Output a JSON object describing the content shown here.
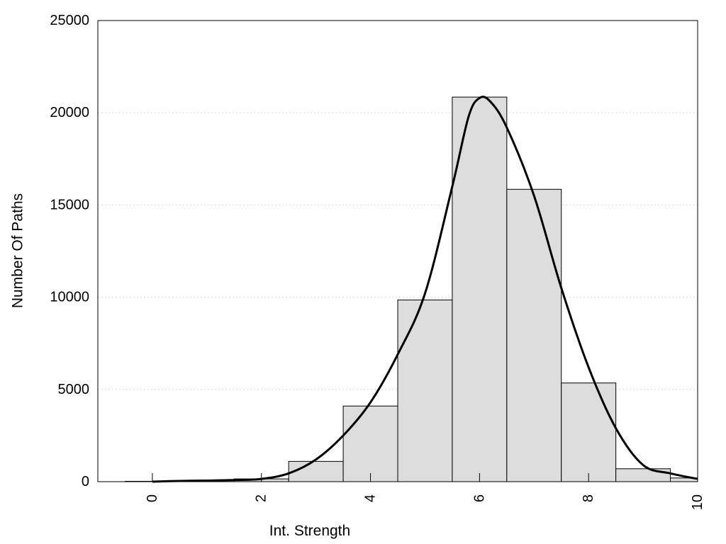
{
  "chart_data": {
    "type": "bar",
    "title": "",
    "xlabel": "Int. Strength",
    "ylabel": "Number Of Paths",
    "xlim": [
      -1,
      10
    ],
    "ylim": [
      0,
      25000
    ],
    "x_ticks": [
      0,
      2,
      4,
      6,
      8,
      10
    ],
    "x_tick_labels": [
      "0",
      "2",
      "4",
      "6",
      "8",
      "10"
    ],
    "y_ticks": [
      0,
      5000,
      10000,
      15000,
      20000,
      25000
    ],
    "y_tick_labels": [
      "0",
      "5000",
      "10000",
      "15000",
      "20000",
      "25000"
    ],
    "grid": "horizontal-dotted",
    "bars": {
      "bin_width": 1,
      "centers": [
        0,
        1,
        2,
        3,
        4,
        5,
        6,
        7,
        8,
        9,
        10
      ],
      "values": [
        20,
        60,
        150,
        1100,
        4100,
        9850,
        20850,
        15850,
        5350,
        700,
        200
      ]
    },
    "density_curve": {
      "x": [
        0,
        0.5,
        1,
        1.5,
        2,
        2.5,
        3,
        3.5,
        4,
        4.5,
        5,
        5.5,
        5.8,
        6,
        6.2,
        6.5,
        7,
        7.5,
        8,
        8.5,
        9,
        9.5,
        10
      ],
      "y": [
        0,
        40,
        60,
        90,
        150,
        450,
        1200,
        2500,
        4300,
        6900,
        10200,
        16000,
        19800,
        20800,
        20600,
        19200,
        15500,
        10500,
        6200,
        2900,
        900,
        450,
        150
      ]
    },
    "colors": {
      "bar_fill": "#dddddd",
      "bar_stroke": "#000000",
      "curve": "#000000",
      "grid": "#d9d9d9"
    }
  }
}
